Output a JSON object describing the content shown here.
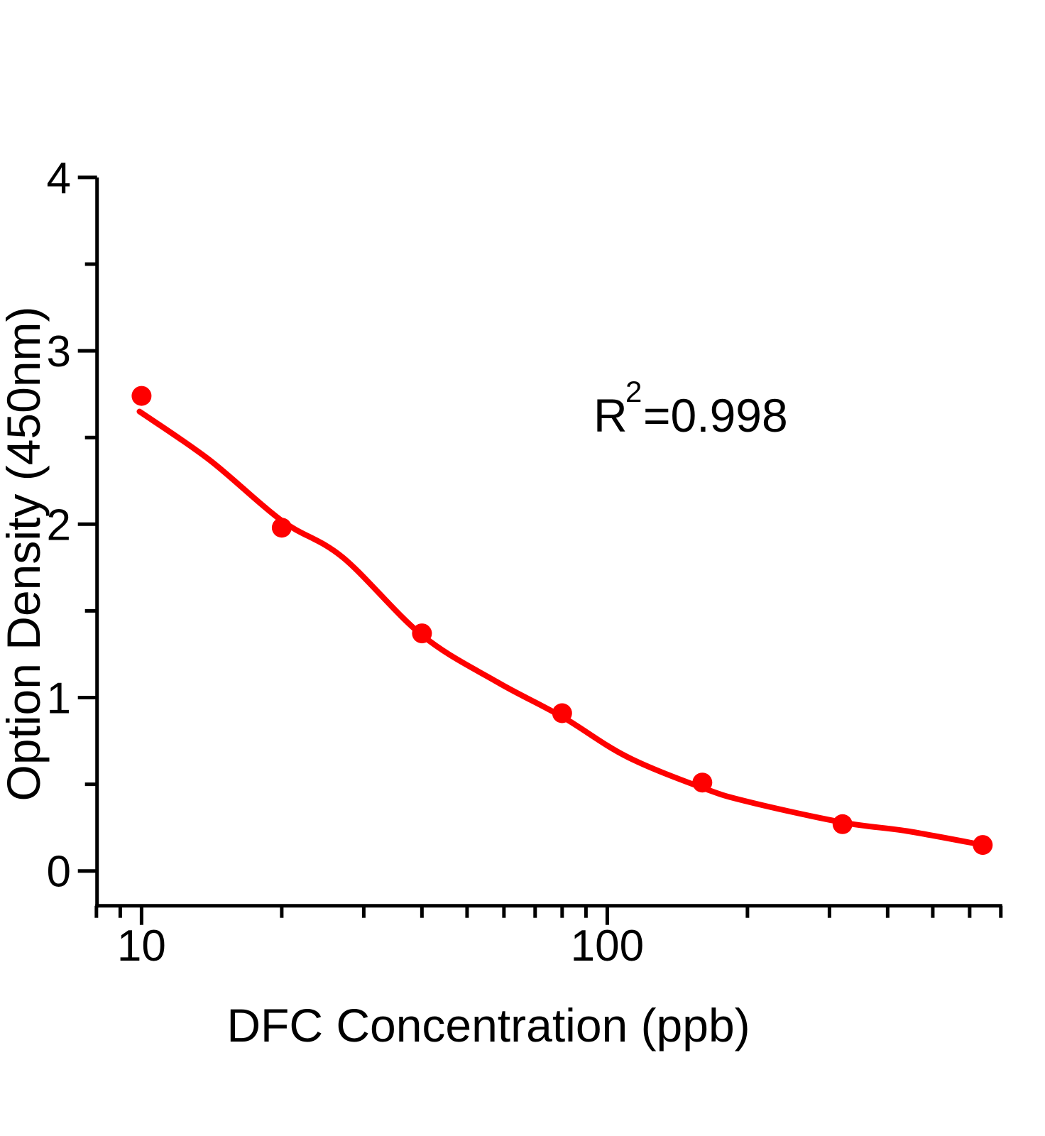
{
  "page": {
    "background": "#ffffff"
  },
  "chart_data": {
    "type": "scatter",
    "title": "",
    "xlabel": "DFC Concentration (ppb)",
    "ylabel": "Option Density (450nm)",
    "x_scale": "log",
    "y_scale": "linear",
    "xlim": [
      8,
      700
    ],
    "ylim": [
      -0.2,
      4
    ],
    "x_major_ticks": [
      10,
      100
    ],
    "x_minor_ticks": [
      8,
      9,
      20,
      30,
      40,
      50,
      60,
      70,
      80,
      90,
      200,
      300,
      400,
      500,
      600,
      700
    ],
    "y_major_ticks": [
      0,
      1,
      2,
      3,
      4
    ],
    "y_minor_ticks": [
      0.5,
      1.5,
      2.5,
      3.5
    ],
    "grid": false,
    "legend": "none",
    "annotation": {
      "text": "R²=0.998",
      "base": "R",
      "exponent": "2",
      "rest": "=0.998"
    },
    "series": [
      {
        "name": "standard-points",
        "type": "scatter",
        "x": [
          10,
          20,
          40,
          80,
          160,
          320,
          640
        ],
        "y": [
          2.74,
          1.98,
          1.37,
          0.91,
          0.51,
          0.27,
          0.15
        ]
      },
      {
        "name": "fit-curve",
        "type": "line",
        "x": [
          9.9,
          14,
          20,
          27,
          40,
          58,
          80,
          110,
          160,
          200,
          320,
          440,
          640
        ],
        "y": [
          2.65,
          2.37,
          2.02,
          1.81,
          1.36,
          1.09,
          0.89,
          0.66,
          0.48,
          0.4,
          0.28,
          0.23,
          0.15
        ]
      }
    ],
    "colors": {
      "points": "#fe0000",
      "curve": "#fe0000",
      "axis": "#000000",
      "text": "#000000"
    }
  }
}
